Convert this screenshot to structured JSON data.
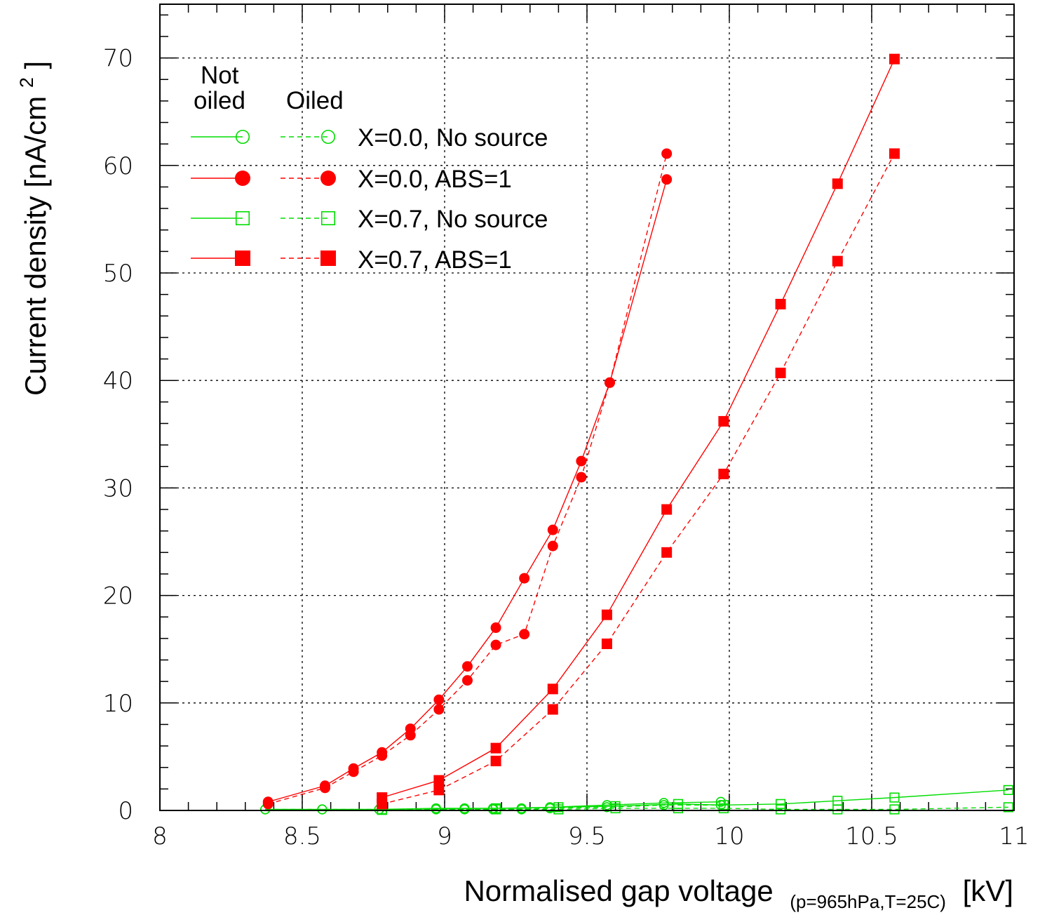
{
  "chart_data": {
    "type": "line",
    "xlabel": "Normalised gap voltage",
    "xlabel_sub": "(p=965hPa,T=25C)",
    "xlabel_unit": "[kV]",
    "ylabel": "Current density [nA/cm",
    "ylabel_sup": "2",
    "ylabel_end": "]",
    "xlim": [
      8,
      11
    ],
    "ylim": [
      0,
      75
    ],
    "x_ticks": [
      8,
      8.5,
      9,
      9.5,
      10,
      10.5,
      11
    ],
    "x_tick_labels": [
      "8",
      "8.5",
      "9",
      "9.5",
      "10",
      "10.5",
      "11"
    ],
    "y_ticks": [
      0,
      10,
      20,
      30,
      40,
      50,
      60,
      70
    ],
    "y_tick_labels": [
      "0",
      "10",
      "20",
      "30",
      "40",
      "50",
      "60",
      "70"
    ],
    "grid": true,
    "legend": {
      "placement": "top-left",
      "header_not_oiled_line1": "Not",
      "header_not_oiled_line2": "oiled",
      "header_oiled": "Oiled",
      "entries": [
        "X=0.0, No source",
        "X=0.0, ABS=1",
        "X=0.7, No source",
        "X=0.7, ABS=1"
      ]
    },
    "series": [
      {
        "label": "X=0.0, No source",
        "condition": "Not oiled",
        "color": "#00dd00",
        "marker": "open-circle",
        "dash": "solid",
        "x": [
          8.37,
          8.57,
          8.77,
          8.97,
          9.07,
          9.17,
          9.27,
          9.37,
          9.57,
          9.77,
          9.97
        ],
        "y": [
          0.1,
          0.1,
          0.1,
          0.2,
          0.2,
          0.2,
          0.2,
          0.3,
          0.5,
          0.7,
          0.8
        ]
      },
      {
        "label": "X=0.0, No source",
        "condition": "Oiled",
        "color": "#00dd00",
        "marker": "open-circle",
        "dash": "dashed",
        "x": [
          8.37,
          8.57,
          8.77,
          8.97,
          9.07,
          9.17,
          9.27,
          9.37,
          9.57,
          9.77,
          9.97
        ],
        "y": [
          0.1,
          0.1,
          0.1,
          0.1,
          0.1,
          0.1,
          0.1,
          0.2,
          0.3,
          0.5,
          0.5
        ]
      },
      {
        "label": "X=0.0, ABS=1",
        "condition": "Not oiled",
        "color": "#ff0000",
        "marker": "filled-circle",
        "dash": "solid",
        "x": [
          8.38,
          8.58,
          8.68,
          8.78,
          8.88,
          8.98,
          9.08,
          9.18,
          9.28,
          9.38,
          9.48,
          9.58,
          9.78
        ],
        "y": [
          0.8,
          2.3,
          3.9,
          5.4,
          7.6,
          10.3,
          13.4,
          17.0,
          21.6,
          26.1,
          32.5,
          39.8,
          58.7
        ]
      },
      {
        "label": "X=0.0, ABS=1",
        "condition": "Oiled",
        "color": "#ff0000",
        "marker": "filled-circle",
        "dash": "dashed",
        "x": [
          8.38,
          8.58,
          8.68,
          8.78,
          8.88,
          8.98,
          9.08,
          9.18,
          9.28,
          9.38,
          9.48,
          9.58,
          9.78
        ],
        "y": [
          0.6,
          2.1,
          3.6,
          5.1,
          7.0,
          9.4,
          12.1,
          15.4,
          16.4,
          24.6,
          31.0,
          39.8,
          61.1
        ]
      },
      {
        "label": "X=0.7, No source",
        "condition": "Not oiled",
        "color": "#00dd00",
        "marker": "open-square",
        "dash": "solid",
        "x": [
          8.78,
          9.18,
          9.4,
          9.6,
          9.82,
          9.98,
          10.18,
          10.38,
          10.58,
          10.98
        ],
        "y": [
          0.1,
          0.2,
          0.3,
          0.4,
          0.6,
          0.5,
          0.6,
          0.9,
          1.2,
          1.9
        ]
      },
      {
        "label": "X=0.7, No source",
        "condition": "Oiled",
        "color": "#00dd00",
        "marker": "open-square",
        "dash": "dashed",
        "x": [
          8.78,
          9.18,
          9.4,
          9.6,
          9.82,
          9.98,
          10.18,
          10.38,
          10.58,
          10.98
        ],
        "y": [
          0.05,
          0.1,
          0.1,
          0.2,
          0.2,
          0.2,
          0.1,
          0.1,
          0.1,
          0.3
        ]
      },
      {
        "label": "X=0.7, ABS=1",
        "condition": "Not oiled",
        "color": "#ff0000",
        "marker": "filled-square",
        "dash": "solid",
        "x": [
          8.78,
          8.98,
          9.18,
          9.38,
          9.57,
          9.78,
          9.98,
          10.18,
          10.38,
          10.58
        ],
        "y": [
          1.2,
          2.8,
          5.8,
          11.3,
          18.2,
          28.0,
          36.2,
          47.1,
          58.3,
          69.9
        ]
      },
      {
        "label": "X=0.7, ABS=1",
        "condition": "Oiled",
        "color": "#ff0000",
        "marker": "filled-square",
        "dash": "dashed",
        "x": [
          8.78,
          8.98,
          9.18,
          9.38,
          9.57,
          9.78,
          9.98,
          10.18,
          10.38,
          10.58
        ],
        "y": [
          0.6,
          1.9,
          4.6,
          9.4,
          15.5,
          24.0,
          31.3,
          40.7,
          51.1,
          61.1
        ]
      }
    ]
  }
}
